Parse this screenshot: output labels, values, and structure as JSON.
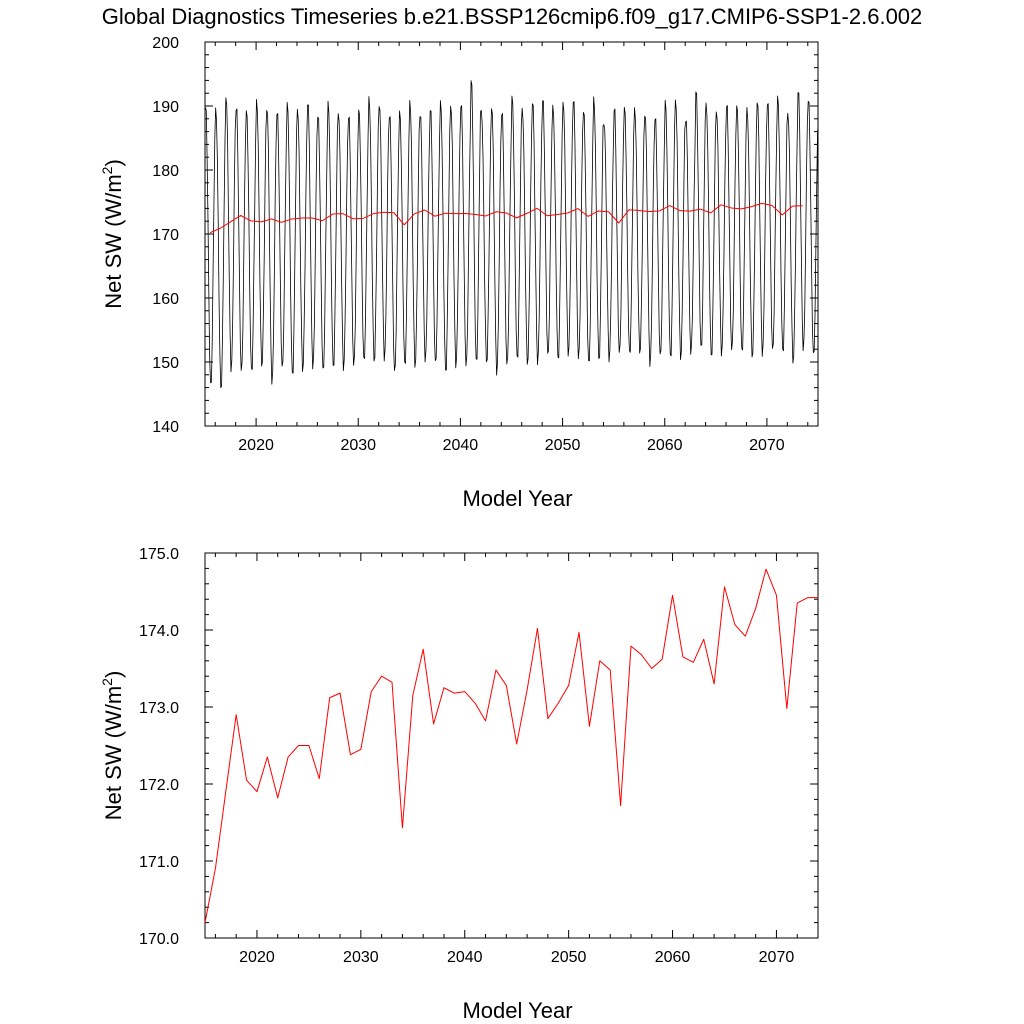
{
  "title": "Global Diagnostics Timeseries b.e21.BSSP126cmip6.f09_g17.CMIP6-SSP1-2.6.002",
  "colors": {
    "monthly": "#000000",
    "annual": "#ff0000",
    "axes": "#000000"
  },
  "chart_data": [
    {
      "type": "line",
      "xlabel": "Model Year",
      "ylabel": "Net SW (W/m",
      "ylabel_sup": "2",
      "ylabel_end": ")",
      "xlim": [
        2015,
        2075
      ],
      "ylim": [
        140,
        200
      ],
      "x_ticks": [
        2020,
        2030,
        2040,
        2050,
        2060,
        2070
      ],
      "x_tick_labels": [
        "2020",
        "2030",
        "2040",
        "2050",
        "2060",
        "2070"
      ],
      "y_ticks": [
        140,
        150,
        160,
        170,
        180,
        190,
        200
      ],
      "y_tick_labels": [
        "140",
        "150",
        "160",
        "170",
        "180",
        "190",
        "200"
      ],
      "series": [
        {
          "style": "monthly seasonal cycle",
          "color": "#000000",
          "start_year": 2015,
          "annual_max": [
            190.1,
            189.5,
            191.8,
            190.2,
            189.3,
            190.9,
            190.1,
            189.4,
            190.4,
            189.6,
            191.1,
            188.7,
            190.5,
            189.2,
            188.9,
            189.5,
            191.3,
            190.6,
            188.9,
            189.1,
            190.9,
            189.2,
            189.8,
            190.6,
            190.3,
            190.8,
            194.2,
            189.1,
            190.2,
            189.4,
            191.5,
            189.6,
            191.2,
            191.4,
            189.9,
            190.8,
            191.5,
            189.3,
            191.2,
            187.6,
            190.1,
            189.8,
            189.6,
            189.2,
            188.5,
            190.7,
            191.1,
            188.4,
            192.6,
            190.2,
            189.5,
            190.7,
            190.1,
            189.6,
            191.2,
            190.9,
            191.4,
            188.9,
            193.0,
            191.2
          ],
          "annual_min": [
            145.8,
            145.5,
            148.7,
            148.3,
            148.1,
            149.2,
            146.7,
            148.7,
            147.6,
            148.6,
            148.9,
            148.2,
            148.9,
            148.9,
            149.2,
            149.8,
            149.9,
            150.4,
            148.1,
            149.2,
            149.2,
            150.1,
            149.4,
            148.1,
            149.3,
            149.2,
            149.5,
            149.7,
            148.2,
            149.2,
            150.1,
            149.6,
            149.7,
            150.6,
            150.1,
            151.1,
            150.4,
            149.3,
            150.1,
            150.3,
            151.1,
            150.9,
            151.3,
            149.5,
            150.6,
            150.4,
            150.5,
            151.2,
            151.7,
            150.6,
            151.2,
            151.6,
            151.2,
            150.6,
            151.1,
            151.5,
            151.2,
            149.9,
            151.8,
            150.6
          ]
        },
        {
          "style": "annual mean",
          "color": "#ff0000",
          "x": [
            2015.5,
            2016.5,
            2017.5,
            2018.5,
            2019.5,
            2020.5,
            2021.5,
            2022.5,
            2023.5,
            2024.5,
            2025.5,
            2026.5,
            2027.5,
            2028.5,
            2029.5,
            2030.5,
            2031.5,
            2032.5,
            2033.5,
            2034.5,
            2035.5,
            2036.5,
            2037.5,
            2038.5,
            2039.5,
            2040.5,
            2041.5,
            2042.5,
            2043.5,
            2044.5,
            2045.5,
            2046.5,
            2047.5,
            2048.5,
            2049.5,
            2050.5,
            2051.5,
            2052.5,
            2053.5,
            2054.5,
            2055.5,
            2056.5,
            2057.5,
            2058.5,
            2059.5,
            2060.5,
            2061.5,
            2062.5,
            2063.5,
            2064.5,
            2065.5,
            2066.5,
            2067.5,
            2068.5,
            2069.5,
            2070.5,
            2071.5,
            2072.5,
            2073.5
          ],
          "values": [
            170.2,
            170.9,
            171.9,
            172.9,
            172.05,
            171.9,
            172.35,
            171.82,
            172.35,
            172.5,
            172.5,
            172.07,
            173.12,
            173.18,
            172.38,
            172.45,
            173.2,
            173.4,
            173.32,
            171.43,
            173.15,
            173.75,
            172.78,
            173.25,
            173.18,
            173.2,
            173.05,
            172.82,
            173.48,
            173.28,
            172.52,
            173.22,
            174.02,
            172.85,
            173.05,
            173.28,
            173.97,
            172.75,
            173.6,
            173.48,
            171.72,
            173.79,
            173.68,
            173.5,
            173.62,
            174.45,
            173.65,
            173.58,
            173.88,
            173.3,
            174.56,
            174.07,
            173.92,
            174.28,
            174.79,
            174.45,
            172.98,
            174.35,
            174.42
          ]
        }
      ]
    },
    {
      "type": "line",
      "xlabel": "Model Year",
      "ylabel": "Net SW (W/m",
      "ylabel_sup": "2",
      "ylabel_end": ")",
      "xlim": [
        2015,
        2074
      ],
      "ylim": [
        170,
        175
      ],
      "x_ticks": [
        2020,
        2030,
        2040,
        2050,
        2060,
        2070
      ],
      "x_tick_labels": [
        "2020",
        "2030",
        "2040",
        "2050",
        "2060",
        "2070"
      ],
      "y_ticks": [
        170,
        171,
        172,
        173,
        174,
        175
      ],
      "y_tick_labels": [
        "170.0",
        "171.0",
        "172.0",
        "173.0",
        "174.0",
        "175.0"
      ],
      "series": [
        {
          "style": "annual mean",
          "color": "#ff0000",
          "x": [
            2015,
            2016,
            2017,
            2018,
            2019,
            2020,
            2021,
            2022,
            2023,
            2024,
            2025,
            2026,
            2027,
            2028,
            2029,
            2030,
            2031,
            2032,
            2033,
            2034,
            2035,
            2036,
            2037,
            2038,
            2039,
            2040,
            2041,
            2042,
            2043,
            2044,
            2045,
            2046,
            2047,
            2048,
            2049,
            2050,
            2051,
            2052,
            2053,
            2054,
            2055,
            2056,
            2057,
            2058,
            2059,
            2060,
            2061,
            2062,
            2063,
            2064,
            2065,
            2066,
            2067,
            2068,
            2069,
            2070,
            2071,
            2072,
            2073,
            2074
          ],
          "values": [
            170.2,
            170.9,
            171.9,
            172.9,
            172.05,
            171.9,
            172.35,
            171.82,
            172.35,
            172.5,
            172.5,
            172.07,
            173.12,
            173.18,
            172.38,
            172.45,
            173.2,
            173.4,
            173.32,
            171.43,
            173.15,
            173.75,
            172.78,
            173.25,
            173.18,
            173.2,
            173.05,
            172.82,
            173.48,
            173.28,
            172.52,
            173.22,
            174.02,
            172.85,
            173.05,
            173.28,
            173.97,
            172.75,
            173.6,
            173.48,
            171.72,
            173.79,
            173.68,
            173.5,
            173.62,
            174.45,
            173.65,
            173.58,
            173.88,
            173.3,
            174.56,
            174.07,
            173.92,
            174.28,
            174.79,
            174.45,
            172.98,
            174.35,
            174.42,
            174.42
          ]
        }
      ]
    }
  ]
}
